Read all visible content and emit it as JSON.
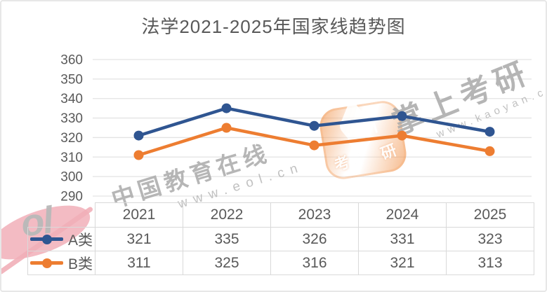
{
  "title": "法学2021-2025年国家线趋势图",
  "chart_data": {
    "type": "line",
    "title": "法学2021-2025年国家线趋势图",
    "categories": [
      "2021",
      "2022",
      "2023",
      "2024",
      "2025"
    ],
    "series": [
      {
        "name": "A类",
        "color": "#2F5591",
        "values": [
          321,
          335,
          326,
          331,
          323
        ]
      },
      {
        "name": "B类",
        "color": "#ED7D31",
        "values": [
          311,
          325,
          316,
          321,
          313
        ]
      }
    ],
    "ylim": [
      290,
      360
    ],
    "yticks": [
      290,
      300,
      310,
      320,
      330,
      340,
      350,
      360
    ],
    "xlabel": "",
    "ylabel": "",
    "grid": true,
    "legend_position": "table-left",
    "markers": true
  },
  "watermarks": {
    "eol": {
      "text": "中国教育在线",
      "url": "www.eol.cn",
      "logo_letters": "ol"
    },
    "kaoyan": {
      "text": "掌上考研",
      "url": "www.kaoyan.cn",
      "badge_kao": "考",
      "badge_yan": "研"
    }
  },
  "colors": {
    "series_a_blue": "#2F5591",
    "series_b_orange": "#ED7D31",
    "gridline": "#e3e3e3",
    "text": "#595959",
    "table_border": "#d9d9d9",
    "watermark_gray": "#ababab",
    "eol_pink": "#f1afb8",
    "badge_orange": "#f08a3c"
  }
}
